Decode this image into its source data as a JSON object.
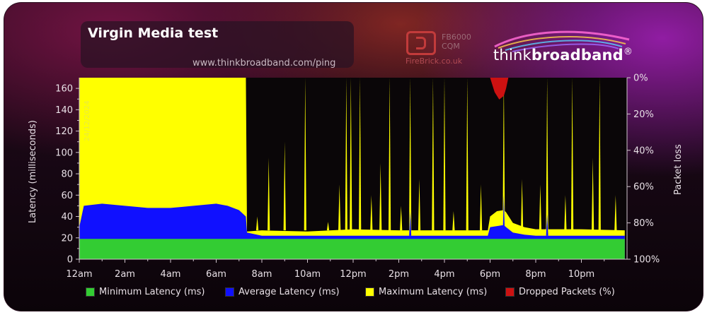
{
  "header": {
    "title": "Virgin Media test",
    "url": "www.thinkbroadband.com/ping",
    "firebrick_model": "FB6000",
    "firebrick_model2": "CQM",
    "firebrick_site": "FireBrick.co.uk",
    "brand_light": "think",
    "brand_bold": "broadband",
    "brand_mark": "®"
  },
  "watermark_date": "24/12/2024",
  "colors": {
    "minimum": "#33cc33",
    "average": "#1010ff",
    "maximum": "#ffff00",
    "dropped": "#cc1111"
  },
  "chart_data": {
    "type": "area",
    "ylabel": "Latency (milliseconds)",
    "y2label": "Packet loss",
    "ylim": [
      0,
      170
    ],
    "y_ticks": [
      0,
      20,
      40,
      60,
      80,
      100,
      120,
      140,
      160
    ],
    "y2_ticks": [
      "0%",
      "20%",
      "40%",
      "60%",
      "80%",
      "100%"
    ],
    "xlim": [
      0,
      24
    ],
    "x_ticks": [
      {
        "x": 0,
        "label": "12am"
      },
      {
        "x": 2,
        "label": "2am"
      },
      {
        "x": 4,
        "label": "4am"
      },
      {
        "x": 6,
        "label": "6am"
      },
      {
        "x": 8,
        "label": "8am"
      },
      {
        "x": 10,
        "label": "10am"
      },
      {
        "x": 12,
        "label": "12pm"
      },
      {
        "x": 14,
        "label": "2pm"
      },
      {
        "x": 16,
        "label": "4pm"
      },
      {
        "x": 18,
        "label": "6pm"
      },
      {
        "x": 20,
        "label": "8pm"
      },
      {
        "x": 22,
        "label": "10pm"
      }
    ],
    "legend": [
      "Minimum Latency (ms)",
      "Average Latency (ms)",
      "Maximum Latency (ms)",
      "Dropped Packets (%)"
    ],
    "legend_position": "bottom",
    "series": [
      {
        "name": "Minimum Latency (ms)",
        "x": [
          0,
          1,
          2,
          3,
          4,
          5,
          6,
          7,
          7.3,
          8,
          10,
          12,
          14,
          16,
          18,
          20,
          22,
          23.9
        ],
        "values": [
          19,
          19,
          19,
          19,
          19,
          19,
          19,
          19,
          19,
          19,
          19,
          19,
          19,
          19,
          19,
          19,
          19,
          19
        ]
      },
      {
        "name": "Average Latency (ms)",
        "x": [
          0,
          0.2,
          1,
          2,
          3,
          4,
          5,
          6,
          6.5,
          7,
          7.3,
          7.35,
          8,
          10,
          12,
          14,
          16,
          17.9,
          18,
          18.6,
          18.7,
          19,
          19.5,
          20,
          22,
          23.9
        ],
        "values": [
          30,
          50,
          52,
          50,
          48,
          48,
          50,
          52,
          50,
          46,
          40,
          25,
          22,
          22,
          22,
          22,
          22,
          22,
          30,
          32,
          30,
          25,
          23,
          22,
          22,
          22
        ]
      },
      {
        "name": "Maximum Latency (ms)",
        "x": [
          0,
          7.3,
          7.35,
          8,
          10,
          12,
          14,
          16,
          17.9,
          18,
          18.3,
          18.6,
          18.7,
          19,
          19.5,
          20,
          22,
          23.9
        ],
        "values": [
          170,
          170,
          26,
          27,
          26,
          28,
          27,
          27,
          27,
          40,
          45,
          46,
          44,
          34,
          30,
          28,
          28,
          27
        ]
      },
      {
        "name": "Dropped Packets (%)",
        "x": [
          18.0,
          18.2,
          18.4,
          18.6,
          18.7,
          18.8
        ],
        "values": [
          0,
          8,
          12,
          10,
          6,
          0
        ]
      }
    ],
    "max_spikes": [
      {
        "x": 7.8,
        "y": 40
      },
      {
        "x": 8.3,
        "y": 95
      },
      {
        "x": 9.0,
        "y": 110
      },
      {
        "x": 9.9,
        "y": 170
      },
      {
        "x": 10.9,
        "y": 35
      },
      {
        "x": 11.4,
        "y": 70
      },
      {
        "x": 11.7,
        "y": 170
      },
      {
        "x": 11.9,
        "y": 170
      },
      {
        "x": 12.3,
        "y": 170
      },
      {
        "x": 12.8,
        "y": 60
      },
      {
        "x": 13.2,
        "y": 90
      },
      {
        "x": 13.6,
        "y": 170
      },
      {
        "x": 14.1,
        "y": 50
      },
      {
        "x": 14.5,
        "y": 170
      },
      {
        "x": 14.9,
        "y": 75
      },
      {
        "x": 15.5,
        "y": 170
      },
      {
        "x": 16.0,
        "y": 170
      },
      {
        "x": 16.4,
        "y": 45
      },
      {
        "x": 17.0,
        "y": 170
      },
      {
        "x": 17.6,
        "y": 70
      },
      {
        "x": 18.6,
        "y": 170
      },
      {
        "x": 19.4,
        "y": 75
      },
      {
        "x": 20.2,
        "y": 70
      },
      {
        "x": 20.5,
        "y": 170
      },
      {
        "x": 21.3,
        "y": 60
      },
      {
        "x": 21.6,
        "y": 170
      },
      {
        "x": 22.5,
        "y": 95
      },
      {
        "x": 22.8,
        "y": 170
      },
      {
        "x": 23.5,
        "y": 60
      }
    ],
    "average_spikes": [
      {
        "x": 14.5,
        "y": 45
      },
      {
        "x": 18.6,
        "y": 60
      },
      {
        "x": 20.5,
        "y": 42
      }
    ]
  }
}
